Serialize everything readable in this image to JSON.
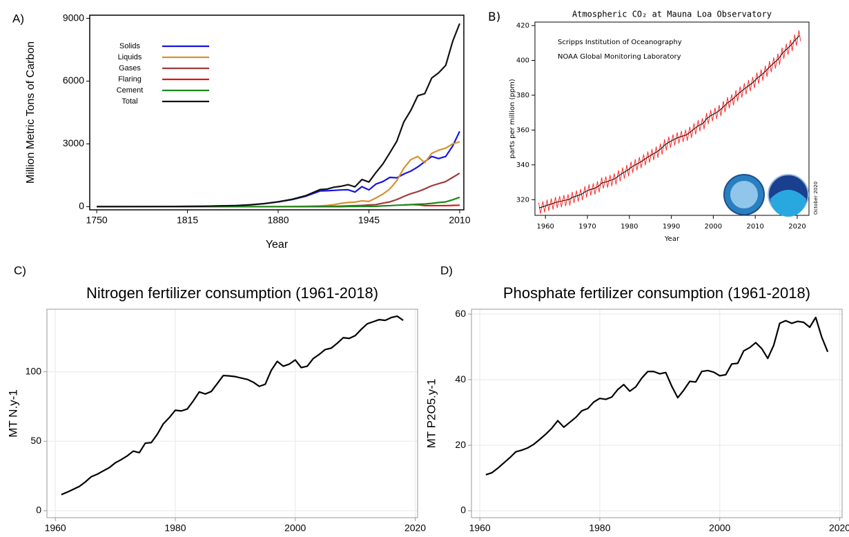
{
  "chart_data": [
    {
      "type": "line",
      "label": "A)",
      "ylabel": "Million Metric Tons of Carbon",
      "xlabel": "Year",
      "xlim": [
        1745,
        2013
      ],
      "ylim": [
        -150,
        9150
      ],
      "xticks": [
        1750,
        1815,
        1880,
        1945,
        2010
      ],
      "yticks": [
        0,
        3000,
        6000,
        9000
      ],
      "grid": false,
      "legend": "upper left",
      "x": [
        1750,
        1775,
        1800,
        1825,
        1850,
        1860,
        1870,
        1880,
        1890,
        1900,
        1910,
        1915,
        1920,
        1925,
        1930,
        1935,
        1940,
        1945,
        1950,
        1955,
        1960,
        1965,
        1970,
        1975,
        1980,
        1985,
        1990,
        1995,
        2000,
        2005,
        2010
      ],
      "series": [
        {
          "name": "Solids",
          "color": "#1414e6",
          "values": [
            3,
            4,
            8,
            20,
            54,
            90,
            145,
            228,
            340,
            505,
            750,
            760,
            780,
            800,
            810,
            700,
            960,
            800,
            1080,
            1200,
            1400,
            1380,
            1560,
            1700,
            1900,
            2150,
            2400,
            2300,
            2400,
            2900,
            3600
          ]
        },
        {
          "name": "Liquids",
          "color": "#d4922e",
          "values": [
            0,
            0,
            0,
            0,
            0,
            0,
            0,
            3,
            10,
            20,
            40,
            60,
            100,
            160,
            200,
            220,
            280,
            250,
            420,
            600,
            850,
            1250,
            1840,
            2250,
            2400,
            2100,
            2550,
            2700,
            2800,
            3000,
            3100
          ]
        },
        {
          "name": "Gases",
          "color": "#a03a3a",
          "values": [
            0,
            0,
            0,
            0,
            0,
            0,
            0,
            0,
            0,
            2,
            10,
            15,
            20,
            30,
            40,
            50,
            60,
            80,
            100,
            170,
            230,
            340,
            490,
            620,
            720,
            850,
            1000,
            1100,
            1200,
            1400,
            1600
          ]
        },
        {
          "name": "Flaring",
          "color": "#e01414",
          "values": [
            null,
            null,
            null,
            null,
            null,
            null,
            null,
            null,
            null,
            null,
            null,
            null,
            null,
            null,
            null,
            null,
            null,
            null,
            null,
            null,
            null,
            null,
            80,
            100,
            90,
            50,
            50,
            50,
            50,
            60,
            70
          ]
        },
        {
          "name": "Cement",
          "color": "#1a8a1a",
          "values": [
            0,
            0,
            0,
            0,
            0,
            0,
            0,
            0,
            0,
            0,
            0,
            0,
            0,
            0,
            10,
            10,
            20,
            15,
            20,
            40,
            50,
            70,
            80,
            100,
            120,
            130,
            160,
            200,
            230,
            330,
            450
          ]
        },
        {
          "name": "Total",
          "color": "#111111",
          "values": [
            3,
            4,
            8,
            20,
            54,
            90,
            147,
            236,
            356,
            534,
            819,
            840,
            932,
            975,
            1053,
            950,
            1299,
            1180,
            1630,
            2040,
            2577,
            3130,
            4050,
            4600,
            5300,
            5400,
            6150,
            6400,
            6750,
            7900,
            8750
          ]
        }
      ]
    },
    {
      "type": "line",
      "label": "B)",
      "title": "Atmospheric CO₂ at Mauna Loa Observatory",
      "ylabel": "parts per million (ppm)",
      "xlabel": "Year",
      "xlim": [
        1957.5,
        2022.8
      ],
      "ylim": [
        311,
        422
      ],
      "xticks": [
        1960,
        1970,
        1980,
        1990,
        2000,
        2010,
        2020
      ],
      "yticks": [
        320,
        340,
        360,
        380,
        400,
        420
      ],
      "grid": false,
      "annotations": [
        "Scripps Institution of Oceanography",
        "NOAA Global Monitoring Laboratory",
        "October 2020"
      ],
      "series": [
        {
          "color": "#ff2a2a",
          "x": [
            1958.4,
            1958.8,
            1959.4,
            1959.8,
            1960.4,
            1960.8,
            1961.4,
            1961.8,
            1962.4,
            1962.8,
            1963.4,
            1963.8,
            1964.4,
            1964.8,
            1965.4,
            1965.8,
            1966.4,
            1966.8,
            1967.4,
            1967.8,
            1968.4,
            1968.8,
            1969.4,
            1969.8,
            1970.4,
            1970.8,
            1971.4,
            1971.8,
            1972.4,
            1972.8,
            1973.4,
            1973.8,
            1974.4,
            1974.8,
            1975.4,
            1975.8,
            1976.4,
            1976.8,
            1977.4,
            1977.8,
            1978.4,
            1978.8,
            1979.4,
            1979.8,
            1980.4,
            1980.8,
            1981.4,
            1981.8,
            1982.4,
            1982.8,
            1983.4,
            1983.8,
            1984.4,
            1984.8,
            1985.4,
            1985.8,
            1986.4,
            1986.8,
            1987.4,
            1987.8,
            1988.4,
            1988.8,
            1989.4,
            1989.8,
            1990.4,
            1990.8,
            1991.4,
            1991.8,
            1992.4,
            1992.8,
            1993.4,
            1993.8,
            1994.4,
            1994.8,
            1995.4,
            1995.8,
            1996.4,
            1996.8,
            1997.4,
            1997.8,
            1998.4,
            1998.8,
            1999.4,
            1999.8,
            2000.4,
            2000.8,
            2001.4,
            2001.8,
            2002.4,
            2002.8,
            2003.4,
            2003.8,
            2004.4,
            2004.8,
            2005.4,
            2005.8,
            2006.4,
            2006.8,
            2007.4,
            2007.8,
            2008.4,
            2008.8,
            2009.4,
            2009.8,
            2010.4,
            2010.8,
            2011.4,
            2011.8,
            2012.4,
            2012.8,
            2013.4,
            2013.8,
            2014.4,
            2014.8,
            2015.4,
            2015.8,
            2016.4,
            2016.8,
            2017.4,
            2017.8,
            2018.4,
            2018.8,
            2019.4,
            2019.8,
            2020.4,
            2020.8
          ],
          "values": [
            318.3,
            312.1,
            319.0,
            312.8,
            319.9,
            313.7,
            320.6,
            314.4,
            321.5,
            315.3,
            322.0,
            315.8,
            322.6,
            316.4,
            323.0,
            316.8,
            324.4,
            318.2,
            325.2,
            319.0,
            326.0,
            319.8,
            327.6,
            321.4,
            328.7,
            322.5,
            329.3,
            323.1,
            330.5,
            324.3,
            332.7,
            326.5,
            333.2,
            327.0,
            334.1,
            327.9,
            335.0,
            328.8,
            336.8,
            330.6,
            338.4,
            332.2,
            339.8,
            333.6,
            341.7,
            335.5,
            343.1,
            336.9,
            344.4,
            338.2,
            346.0,
            339.8,
            347.6,
            341.4,
            349.0,
            342.8,
            350.4,
            344.2,
            352.2,
            346.0,
            354.6,
            348.4,
            356.1,
            349.9,
            357.4,
            351.2,
            358.6,
            352.4,
            359.4,
            353.2,
            360.1,
            353.9,
            361.8,
            355.6,
            363.8,
            357.6,
            365.6,
            359.4,
            366.7,
            360.5,
            369.7,
            363.5,
            371.4,
            365.2,
            372.7,
            366.5,
            374.3,
            368.1,
            376.5,
            370.3,
            378.8,
            372.6,
            380.5,
            374.3,
            382.8,
            376.6,
            384.9,
            378.7,
            386.8,
            380.6,
            388.6,
            382.4,
            390.4,
            384.2,
            392.9,
            386.7,
            394.7,
            388.5,
            396.9,
            390.7,
            399.5,
            393.3,
            401.6,
            395.4,
            403.8,
            397.6,
            407.2,
            401.0,
            409.5,
            403.3,
            411.7,
            405.5,
            414.7,
            408.5,
            417.2,
            411.0
          ]
        },
        {
          "color": "#000000",
          "x": [
            1958.5,
            1959.5,
            1960.5,
            1961.5,
            1962.5,
            1963.5,
            1964.5,
            1965.5,
            1966.5,
            1967.5,
            1968.5,
            1969.5,
            1970.5,
            1971.5,
            1972.5,
            1973.5,
            1974.5,
            1975.5,
            1976.5,
            1977.5,
            1978.5,
            1979.5,
            1980.5,
            1981.5,
            1982.5,
            1983.5,
            1984.5,
            1985.5,
            1986.5,
            1987.5,
            1988.5,
            1989.5,
            1990.5,
            1991.5,
            1992.5,
            1993.5,
            1994.5,
            1995.5,
            1996.5,
            1997.5,
            1998.5,
            1999.5,
            2000.5,
            2001.5,
            2002.5,
            2003.5,
            2004.5,
            2005.5,
            2006.5,
            2007.5,
            2008.5,
            2009.5,
            2010.5,
            2011.5,
            2012.5,
            2013.5,
            2014.5,
            2015.5,
            2016.5,
            2017.5,
            2018.5,
            2019.5,
            2020.5
          ],
          "values": [
            315.3,
            316.0,
            316.9,
            317.6,
            318.5,
            319.0,
            319.6,
            320.0,
            321.4,
            322.2,
            323.0,
            324.6,
            325.7,
            326.3,
            327.5,
            329.7,
            330.2,
            331.1,
            332.0,
            333.8,
            335.4,
            336.8,
            338.7,
            340.1,
            341.4,
            343.0,
            344.6,
            346.0,
            347.4,
            349.2,
            351.6,
            353.1,
            354.4,
            355.6,
            356.4,
            357.1,
            358.8,
            360.8,
            362.6,
            363.7,
            366.7,
            368.4,
            369.7,
            371.3,
            373.5,
            375.8,
            377.5,
            379.8,
            381.9,
            383.8,
            385.6,
            387.4,
            389.9,
            391.7,
            393.9,
            396.5,
            398.6,
            400.8,
            404.2,
            406.5,
            408.7,
            411.7,
            414.2
          ]
        }
      ]
    },
    {
      "type": "line",
      "label": "C)",
      "title": "Nitrogen fertilizer consumption (1961-2018)",
      "ylabel": "MT N.y-1",
      "xlim": [
        1958.6,
        2020.4
      ],
      "ylim": [
        -5,
        145
      ],
      "xticks": [
        1960,
        1980,
        2000,
        2020
      ],
      "yticks": [
        0,
        50,
        100
      ],
      "grid": true,
      "x": [
        1961,
        1962,
        1963,
        1964,
        1965,
        1966,
        1967,
        1968,
        1969,
        1970,
        1971,
        1972,
        1973,
        1974,
        1975,
        1976,
        1977,
        1978,
        1979,
        1980,
        1981,
        1982,
        1983,
        1984,
        1985,
        1986,
        1987,
        1988,
        1989,
        1990,
        1991,
        1992,
        1993,
        1994,
        1995,
        1996,
        1997,
        1998,
        1999,
        2000,
        2001,
        2002,
        2003,
        2004,
        2005,
        2006,
        2007,
        2008,
        2009,
        2010,
        2011,
        2012,
        2013,
        2014,
        2015,
        2016,
        2017,
        2018
      ],
      "series": [
        {
          "color": "#000000",
          "values": [
            11.6,
            13.4,
            15.4,
            17.5,
            20.7,
            24.5,
            26.3,
            28.7,
            31.0,
            34.5,
            36.8,
            39.5,
            42.9,
            41.8,
            48.6,
            49.0,
            55.0,
            62.5,
            67.0,
            72.3,
            71.8,
            73.2,
            79.0,
            85.5,
            84.0,
            85.8,
            91.5,
            97.3,
            97.0,
            96.5,
            95.5,
            94.5,
            92.5,
            89.5,
            91.0,
            101.0,
            107.5,
            104.0,
            105.5,
            108.5,
            103.0,
            104.0,
            109.5,
            112.5,
            116.0,
            117.0,
            120.5,
            124.5,
            124.0,
            126.0,
            130.5,
            134.5,
            136.0,
            137.5,
            137.0,
            139.0,
            140.0,
            137.0
          ]
        }
      ]
    },
    {
      "type": "line",
      "label": "D)",
      "title": "Phosphate fertilizer consumption (1961-2018)",
      "ylabel": "MT P2O5.y-1",
      "xlim": [
        1958.6,
        2020.4
      ],
      "ylim": [
        -2.1,
        61.5
      ],
      "xticks": [
        1960,
        1980,
        2000,
        2020
      ],
      "yticks": [
        0,
        20,
        40,
        60
      ],
      "grid": true,
      "x": [
        1961,
        1962,
        1963,
        1964,
        1965,
        1966,
        1967,
        1968,
        1969,
        1970,
        1971,
        1972,
        1973,
        1974,
        1975,
        1976,
        1977,
        1978,
        1979,
        1980,
        1981,
        1982,
        1983,
        1984,
        1985,
        1986,
        1987,
        1988,
        1989,
        1990,
        1991,
        1992,
        1993,
        1994,
        1995,
        1996,
        1997,
        1998,
        1999,
        2000,
        2001,
        2002,
        2003,
        2004,
        2005,
        2006,
        2007,
        2008,
        2009,
        2010,
        2011,
        2012,
        2013,
        2014,
        2015,
        2016,
        2017,
        2018
      ],
      "series": [
        {
          "color": "#000000",
          "values": [
            11.0,
            11.6,
            13.0,
            14.6,
            16.2,
            18.0,
            18.5,
            19.2,
            20.3,
            21.8,
            23.4,
            25.2,
            27.5,
            25.5,
            27.0,
            28.5,
            30.5,
            31.2,
            33.2,
            34.3,
            34.0,
            34.7,
            37.0,
            38.5,
            36.5,
            37.8,
            40.5,
            42.5,
            42.5,
            41.8,
            42.2,
            38.0,
            34.5,
            36.8,
            39.5,
            39.3,
            42.5,
            42.8,
            42.3,
            41.2,
            41.5,
            44.8,
            45.0,
            48.8,
            49.8,
            51.3,
            49.5,
            46.5,
            50.5,
            57.2,
            58.0,
            57.2,
            57.8,
            57.5,
            56.0,
            59.0,
            53.0,
            48.5
          ]
        }
      ]
    }
  ]
}
